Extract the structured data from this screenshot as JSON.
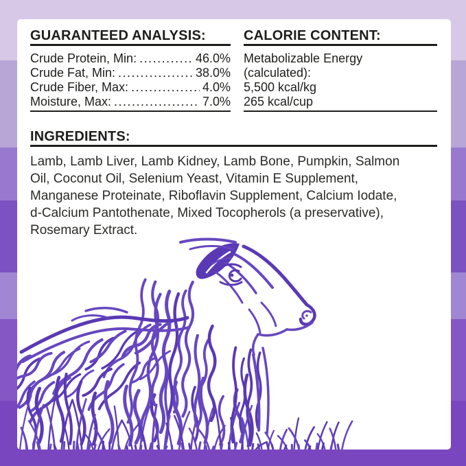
{
  "label": {
    "guaranteed_analysis": {
      "title": "GUARANTEED ANALYSIS:",
      "rows": [
        {
          "label": "Crude Protein, Min:",
          "value": "46.0%"
        },
        {
          "label": "Crude Fat, Min:",
          "value": "38.0%"
        },
        {
          "label": "Crude Fiber, Max:",
          "value": "4.0%"
        },
        {
          "label": "Moisture, Max:",
          "value": "7.0%"
        }
      ]
    },
    "calorie_content": {
      "title": "CALORIE CONTENT:",
      "lines": [
        "Metabolizable Energy",
        "(calculated):",
        "5,500 kcal/kg",
        "265 kcal/cup"
      ]
    },
    "ingredients": {
      "title": "INGREDIENTS:",
      "lines": [
        "Lamb, Lamb Liver, Lamb Kidney, Lamb Bone, Pumpkin, Salmon",
        "Oil, Coconut Oil, Selenium Yeast, Vitamin E Supplement,",
        "Manganese Proteinate, Riboflavin Supplement, Calcium Iodate,",
        "d-Calcium Pantothenate, Mixed Tocopherols (a preservative),",
        "Rosemary Extract."
      ]
    }
  },
  "illustration": {
    "name": "lamb-in-grass-illustration",
    "subject": "line-art lamb resting in grass",
    "color": "#6747c0",
    "color_dark": "#5a39b4"
  },
  "palette": {
    "text": "#1d1d1b",
    "card_background": "#ffffff",
    "stripes": [
      "#d6c8e6",
      "#b7a6d6",
      "#9879cf",
      "#7c52c2",
      "#a187d3",
      "#8456c6",
      "#7a46bf"
    ]
  }
}
